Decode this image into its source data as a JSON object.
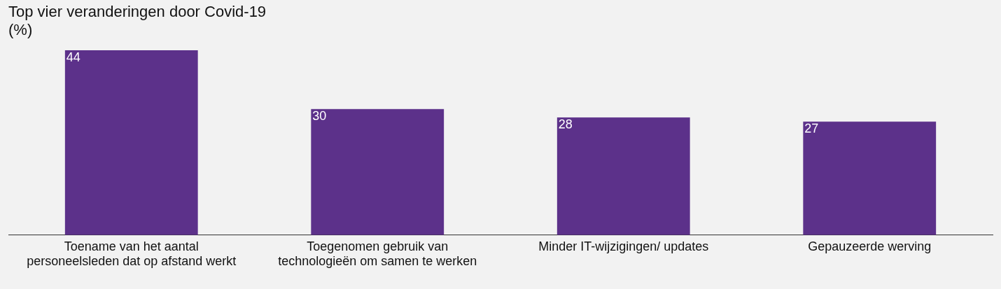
{
  "chart_data": {
    "type": "bar",
    "title": "Top vier veranderingen door Covid-19",
    "subtitle": "(%)",
    "categories": [
      "Toename van het aantal personeelsleden dat op afstand werkt",
      "Toegenomen gebruik van technologieën om samen te werken",
      "Minder IT-wijzigingen/ updates",
      "Gepauzeerde werving"
    ],
    "values": [
      44,
      30,
      28,
      27
    ],
    "color": "#5c318a",
    "data_labels": true,
    "grid": false,
    "legend": false
  }
}
